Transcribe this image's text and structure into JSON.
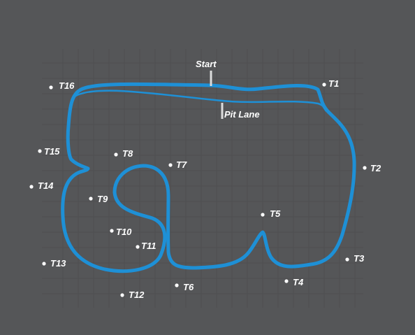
{
  "colors": {
    "background": "#555658",
    "grid": "#4a4b4d",
    "track": "#1e90d6",
    "pit_lane": "#1e90d6",
    "labels": "#ffffff"
  },
  "markers": {
    "start": "Start",
    "pit_lane": "Pit Lane"
  },
  "turns": [
    "T1",
    "T2",
    "T3",
    "T4",
    "T5",
    "T6",
    "T7",
    "T8",
    "T9",
    "T10",
    "T11",
    "T12",
    "T13",
    "T14",
    "T15",
    "T16"
  ]
}
